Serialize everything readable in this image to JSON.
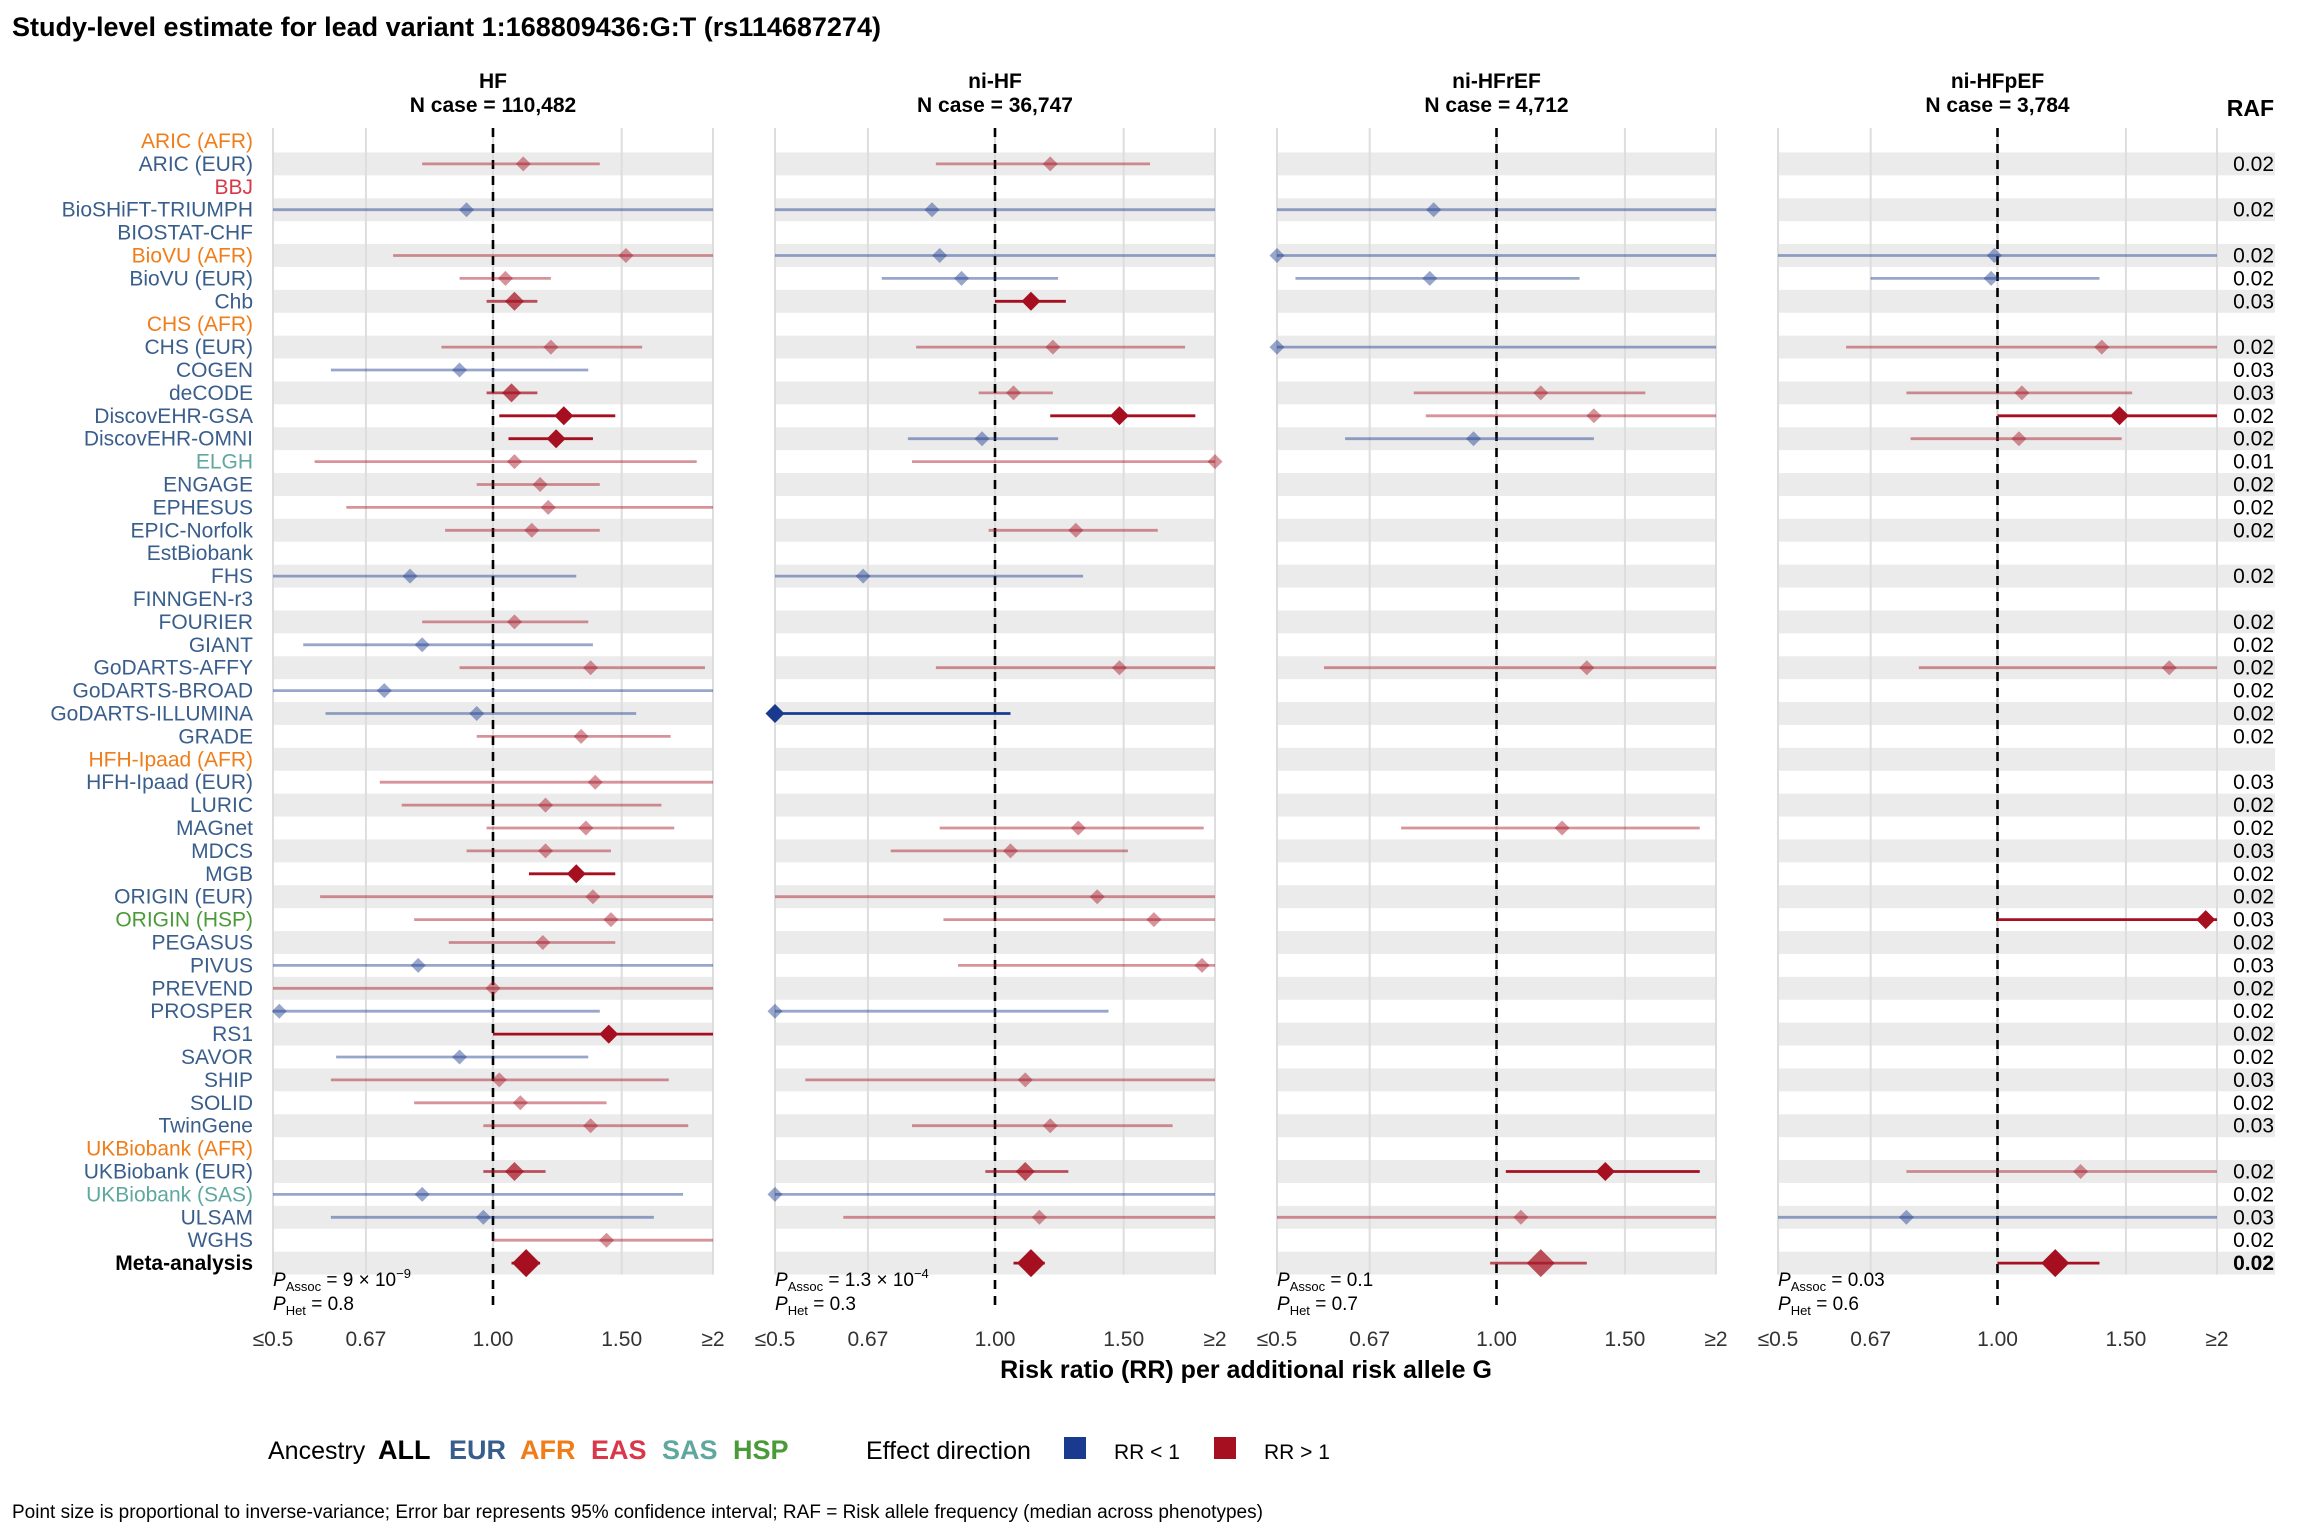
{
  "chart_data": {
    "type": "forest",
    "title": "Study-level estimate for lead variant 1:168809436:G:T (rs114687274)",
    "xlabel": "Risk ratio (RR) per additional risk allele G",
    "x_scale": "log",
    "xlim": [
      0.5,
      2
    ],
    "x_ticks": [
      0.5,
      0.67,
      1.0,
      1.5,
      2
    ],
    "x_tick_labels": [
      "≤0.5",
      "0.67",
      "1.00",
      "1.50",
      "≥2"
    ],
    "reference_line": 1.0,
    "raf_header": "RAF",
    "ancestry_colors": {
      "ALL": "#000000",
      "EUR": "#3a5e8c",
      "AFR": "#ef7d1a",
      "EAS": "#d9384a",
      "SAS": "#5fa8a0",
      "HSP": "#4b9a3a"
    },
    "direction_colors": {
      "lt1": "#1a3a8f",
      "gt1": "#a50f1f"
    },
    "studies": [
      {
        "name": "ARIC (AFR)",
        "ancestry": "AFR",
        "raf": ""
      },
      {
        "name": "ARIC (EUR)",
        "ancestry": "EUR",
        "raf": "0.02"
      },
      {
        "name": "BBJ",
        "ancestry": "EAS",
        "raf": ""
      },
      {
        "name": "BioSHiFT-TRIUMPH",
        "ancestry": "EUR",
        "raf": "0.02"
      },
      {
        "name": "BIOSTAT-CHF",
        "ancestry": "EUR",
        "raf": ""
      },
      {
        "name": "BioVU (AFR)",
        "ancestry": "AFR",
        "raf": "0.02"
      },
      {
        "name": "BioVU (EUR)",
        "ancestry": "EUR",
        "raf": "0.02"
      },
      {
        "name": "Chb",
        "ancestry": "EUR",
        "raf": "0.03"
      },
      {
        "name": "CHS (AFR)",
        "ancestry": "AFR",
        "raf": ""
      },
      {
        "name": "CHS (EUR)",
        "ancestry": "EUR",
        "raf": "0.02"
      },
      {
        "name": "COGEN",
        "ancestry": "EUR",
        "raf": "0.03"
      },
      {
        "name": "deCODE",
        "ancestry": "EUR",
        "raf": "0.03"
      },
      {
        "name": "DiscovEHR-GSA",
        "ancestry": "EUR",
        "raf": "0.02"
      },
      {
        "name": "DiscovEHR-OMNI",
        "ancestry": "EUR",
        "raf": "0.02"
      },
      {
        "name": "ELGH",
        "ancestry": "SAS",
        "raf": "0.01"
      },
      {
        "name": "ENGAGE",
        "ancestry": "EUR",
        "raf": "0.02"
      },
      {
        "name": "EPHESUS",
        "ancestry": "EUR",
        "raf": "0.02"
      },
      {
        "name": "EPIC-Norfolk",
        "ancestry": "EUR",
        "raf": "0.02"
      },
      {
        "name": "EstBiobank",
        "ancestry": "EUR",
        "raf": ""
      },
      {
        "name": "FHS",
        "ancestry": "EUR",
        "raf": "0.02"
      },
      {
        "name": "FINNGEN-r3",
        "ancestry": "EUR",
        "raf": ""
      },
      {
        "name": "FOURIER",
        "ancestry": "EUR",
        "raf": "0.02"
      },
      {
        "name": "GIANT",
        "ancestry": "EUR",
        "raf": "0.02"
      },
      {
        "name": "GoDARTS-AFFY",
        "ancestry": "EUR",
        "raf": "0.02"
      },
      {
        "name": "GoDARTS-BROAD",
        "ancestry": "EUR",
        "raf": "0.02"
      },
      {
        "name": "GoDARTS-ILLUMINA",
        "ancestry": "EUR",
        "raf": "0.02"
      },
      {
        "name": "GRADE",
        "ancestry": "EUR",
        "raf": "0.02"
      },
      {
        "name": "HFH-Ipaad (AFR)",
        "ancestry": "AFR",
        "raf": ""
      },
      {
        "name": "HFH-Ipaad (EUR)",
        "ancestry": "EUR",
        "raf": "0.03"
      },
      {
        "name": "LURIC",
        "ancestry": "EUR",
        "raf": "0.02"
      },
      {
        "name": "MAGnet",
        "ancestry": "EUR",
        "raf": "0.02"
      },
      {
        "name": "MDCS",
        "ancestry": "EUR",
        "raf": "0.03"
      },
      {
        "name": "MGB",
        "ancestry": "EUR",
        "raf": "0.02"
      },
      {
        "name": "ORIGIN (EUR)",
        "ancestry": "EUR",
        "raf": "0.02"
      },
      {
        "name": "ORIGIN (HSP)",
        "ancestry": "HSP",
        "raf": "0.03"
      },
      {
        "name": "PEGASUS",
        "ancestry": "EUR",
        "raf": "0.02"
      },
      {
        "name": "PIVUS",
        "ancestry": "EUR",
        "raf": "0.03"
      },
      {
        "name": "PREVEND",
        "ancestry": "EUR",
        "raf": "0.02"
      },
      {
        "name": "PROSPER",
        "ancestry": "EUR",
        "raf": "0.02"
      },
      {
        "name": "RS1",
        "ancestry": "EUR",
        "raf": "0.02"
      },
      {
        "name": "SAVOR",
        "ancestry": "EUR",
        "raf": "0.02"
      },
      {
        "name": "SHIP",
        "ancestry": "EUR",
        "raf": "0.03"
      },
      {
        "name": "SOLID",
        "ancestry": "EUR",
        "raf": "0.02"
      },
      {
        "name": "TwinGene",
        "ancestry": "EUR",
        "raf": "0.03"
      },
      {
        "name": "UKBiobank (AFR)",
        "ancestry": "AFR",
        "raf": ""
      },
      {
        "name": "UKBiobank (EUR)",
        "ancestry": "EUR",
        "raf": "0.02"
      },
      {
        "name": "UKBiobank (SAS)",
        "ancestry": "SAS",
        "raf": "0.02"
      },
      {
        "name": "ULSAM",
        "ancestry": "EUR",
        "raf": "0.03"
      },
      {
        "name": "WGHS",
        "ancestry": "EUR",
        "raf": "0.02"
      },
      {
        "name": "Meta-analysis",
        "ancestry": "ALL",
        "raf": "0.02"
      }
    ],
    "panels": [
      {
        "title": "HF",
        "ncase": "N case = 110,482",
        "p_assoc": "= 9 × 10",
        "p_assoc_exp": "−9",
        "p_het": "= 0.8",
        "estimates": [
          {
            "study": "ARIC (EUR)",
            "rr": 1.1,
            "lo": 0.8,
            "hi": 1.4
          },
          {
            "study": "BioSHiFT-TRIUMPH",
            "rr": 0.92,
            "lo": 0.5,
            "hi": 2
          },
          {
            "study": "BioVU (AFR)",
            "rr": 1.52,
            "lo": 0.73,
            "hi": 2
          },
          {
            "study": "BioVU (EUR)",
            "rr": 1.04,
            "lo": 0.9,
            "hi": 1.2
          },
          {
            "study": "Chb",
            "rr": 1.07,
            "lo": 0.98,
            "hi": 1.15,
            "strong": true
          },
          {
            "study": "CHS (EUR)",
            "rr": 1.2,
            "lo": 0.85,
            "hi": 1.6
          },
          {
            "study": "COGEN",
            "rr": 0.9,
            "lo": 0.6,
            "hi": 1.35
          },
          {
            "study": "deCODE",
            "rr": 1.06,
            "lo": 0.98,
            "hi": 1.15,
            "strong": true
          },
          {
            "study": "DiscovEHR-GSA",
            "rr": 1.25,
            "lo": 1.02,
            "hi": 1.47,
            "sig": true
          },
          {
            "study": "DiscovEHR-OMNI",
            "rr": 1.22,
            "lo": 1.05,
            "hi": 1.37,
            "sig": true
          },
          {
            "study": "ELGH",
            "rr": 1.07,
            "lo": 0.57,
            "hi": 1.9
          },
          {
            "study": "ENGAGE",
            "rr": 1.16,
            "lo": 0.95,
            "hi": 1.4
          },
          {
            "study": "EPHESUS",
            "rr": 1.19,
            "lo": 0.63,
            "hi": 2
          },
          {
            "study": "EPIC-Norfolk",
            "rr": 1.13,
            "lo": 0.86,
            "hi": 1.4
          },
          {
            "study": "FHS",
            "rr": 0.77,
            "lo": 0.5,
            "hi": 1.3
          },
          {
            "study": "FOURIER",
            "rr": 1.07,
            "lo": 0.8,
            "hi": 1.35
          },
          {
            "study": "GIANT",
            "rr": 0.8,
            "lo": 0.55,
            "hi": 1.37
          },
          {
            "study": "GoDARTS-AFFY",
            "rr": 1.36,
            "lo": 0.9,
            "hi": 1.95
          },
          {
            "study": "GoDARTS-BROAD",
            "rr": 0.71,
            "lo": 0.5,
            "hi": 2
          },
          {
            "study": "GoDARTS-ILLUMINA",
            "rr": 0.95,
            "lo": 0.59,
            "hi": 1.57
          },
          {
            "study": "GRADE",
            "rr": 1.32,
            "lo": 0.95,
            "hi": 1.75
          },
          {
            "study": "HFH-Ipaad (EUR)",
            "rr": 1.38,
            "lo": 0.7,
            "hi": 2
          },
          {
            "study": "LURIC",
            "rr": 1.18,
            "lo": 0.75,
            "hi": 1.7
          },
          {
            "study": "MAGnet",
            "rr": 1.34,
            "lo": 0.98,
            "hi": 1.77
          },
          {
            "study": "MDCS",
            "rr": 1.18,
            "lo": 0.92,
            "hi": 1.45
          },
          {
            "study": "MGB",
            "rr": 1.3,
            "lo": 1.12,
            "hi": 1.47,
            "sig": true
          },
          {
            "study": "ORIGIN (EUR)",
            "rr": 1.37,
            "lo": 0.58,
            "hi": 2
          },
          {
            "study": "ORIGIN (HSP)",
            "rr": 1.45,
            "lo": 0.78,
            "hi": 2
          },
          {
            "study": "PEGASUS",
            "rr": 1.17,
            "lo": 0.87,
            "hi": 1.47
          },
          {
            "study": "PIVUS",
            "rr": 0.79,
            "lo": 0.5,
            "hi": 2
          },
          {
            "study": "PREVEND",
            "rr": 1.0,
            "lo": 0.5,
            "hi": 2
          },
          {
            "study": "PROSPER",
            "rr": 0.51,
            "lo": 0.5,
            "hi": 1.4
          },
          {
            "study": "RS1",
            "rr": 1.44,
            "lo": 1.0,
            "hi": 2,
            "sig": true
          },
          {
            "study": "SAVOR",
            "rr": 0.9,
            "lo": 0.61,
            "hi": 1.35
          },
          {
            "study": "SHIP",
            "rr": 1.02,
            "lo": 0.6,
            "hi": 1.74
          },
          {
            "study": "SOLID",
            "rr": 1.09,
            "lo": 0.78,
            "hi": 1.43
          },
          {
            "study": "TwinGene",
            "rr": 1.36,
            "lo": 0.97,
            "hi": 1.85
          },
          {
            "study": "UKBiobank (EUR)",
            "rr": 1.07,
            "lo": 0.97,
            "hi": 1.18,
            "strong": true
          },
          {
            "study": "UKBiobank (SAS)",
            "rr": 0.8,
            "lo": 0.5,
            "hi": 1.82
          },
          {
            "study": "ULSAM",
            "rr": 0.97,
            "lo": 0.6,
            "hi": 1.66
          },
          {
            "study": "WGHS",
            "rr": 1.43,
            "lo": 1.0,
            "hi": 2
          },
          {
            "study": "Meta-analysis",
            "rr": 1.11,
            "lo": 1.06,
            "hi": 1.16,
            "sig": true,
            "meta": true
          }
        ]
      },
      {
        "title": "ni-HF",
        "ncase": "N case = 36,747",
        "p_assoc": "= 1.3 × 10",
        "p_assoc_exp": "−4",
        "p_het": "= 0.3",
        "estimates": [
          {
            "study": "ARIC (EUR)",
            "rr": 1.19,
            "lo": 0.83,
            "hi": 1.63
          },
          {
            "study": "BioSHiFT-TRIUMPH",
            "rr": 0.82,
            "lo": 0.5,
            "hi": 2
          },
          {
            "study": "BioVU (AFR)",
            "rr": 0.84,
            "lo": 0.5,
            "hi": 2
          },
          {
            "study": "BioVU (EUR)",
            "rr": 0.9,
            "lo": 0.7,
            "hi": 1.22
          },
          {
            "study": "Chb",
            "rr": 1.12,
            "lo": 1.0,
            "hi": 1.25,
            "sig": true
          },
          {
            "study": "CHS (EUR)",
            "rr": 1.2,
            "lo": 0.78,
            "hi": 1.82
          },
          {
            "study": "deCODE",
            "rr": 1.06,
            "lo": 0.95,
            "hi": 1.2
          },
          {
            "study": "DiscovEHR-GSA",
            "rr": 1.48,
            "lo": 1.19,
            "hi": 1.88,
            "sig": true
          },
          {
            "study": "DiscovEHR-OMNI",
            "rr": 0.96,
            "lo": 0.76,
            "hi": 1.22
          },
          {
            "study": "ELGH",
            "rr": 2.0,
            "lo": 0.77,
            "hi": 2
          },
          {
            "study": "EPIC-Norfolk",
            "rr": 1.29,
            "lo": 0.98,
            "hi": 1.67
          },
          {
            "study": "FHS",
            "rr": 0.66,
            "lo": 0.5,
            "hi": 1.32
          },
          {
            "study": "GoDARTS-AFFY",
            "rr": 1.48,
            "lo": 0.83,
            "hi": 2
          },
          {
            "study": "GoDARTS-ILLUMINA",
            "rr": 0.5,
            "lo": 0.5,
            "hi": 1.05,
            "sig": true
          },
          {
            "study": "MAGnet",
            "rr": 1.3,
            "lo": 0.84,
            "hi": 1.93
          },
          {
            "study": "MDCS",
            "rr": 1.05,
            "lo": 0.72,
            "hi": 1.52
          },
          {
            "study": "ORIGIN (EUR)",
            "rr": 1.38,
            "lo": 0.5,
            "hi": 2
          },
          {
            "study": "ORIGIN (HSP)",
            "rr": 1.65,
            "lo": 0.85,
            "hi": 2
          },
          {
            "study": "PIVUS",
            "rr": 1.92,
            "lo": 0.89,
            "hi": 2
          },
          {
            "study": "PROSPER",
            "rr": 0.5,
            "lo": 0.5,
            "hi": 1.43
          },
          {
            "study": "SHIP",
            "rr": 1.1,
            "lo": 0.55,
            "hi": 2
          },
          {
            "study": "TwinGene",
            "rr": 1.19,
            "lo": 0.77,
            "hi": 1.75
          },
          {
            "study": "UKBiobank (EUR)",
            "rr": 1.1,
            "lo": 0.97,
            "hi": 1.26,
            "strong": true
          },
          {
            "study": "UKBiobank (SAS)",
            "rr": 0.5,
            "lo": 0.5,
            "hi": 2
          },
          {
            "study": "ULSAM",
            "rr": 1.15,
            "lo": 0.62,
            "hi": 2
          },
          {
            "study": "Meta-analysis",
            "rr": 1.12,
            "lo": 1.06,
            "hi": 1.17,
            "sig": true,
            "meta": true
          }
        ]
      },
      {
        "title": "ni-HFrEF",
        "ncase": "N case = 4,712",
        "p_assoc": "= 0.1",
        "p_assoc_exp": "",
        "p_het": "= 0.7",
        "estimates": [
          {
            "study": "BioSHiFT-TRIUMPH",
            "rr": 0.82,
            "lo": 0.5,
            "hi": 2
          },
          {
            "study": "BioVU (AFR)",
            "rr": 0.5,
            "lo": 0.5,
            "hi": 2
          },
          {
            "study": "BioVU (EUR)",
            "rr": 0.81,
            "lo": 0.53,
            "hi": 1.3
          },
          {
            "study": "CHS (EUR)",
            "rr": 0.5,
            "lo": 0.5,
            "hi": 2
          },
          {
            "study": "deCODE",
            "rr": 1.15,
            "lo": 0.77,
            "hi": 1.6
          },
          {
            "study": "DiscovEHR-GSA",
            "rr": 1.36,
            "lo": 0.8,
            "hi": 2
          },
          {
            "study": "DiscovEHR-OMNI",
            "rr": 0.93,
            "lo": 0.62,
            "hi": 1.36
          },
          {
            "study": "GoDARTS-AFFY",
            "rr": 1.33,
            "lo": 0.58,
            "hi": 2
          },
          {
            "study": "MAGnet",
            "rr": 1.23,
            "lo": 0.74,
            "hi": 1.9
          },
          {
            "study": "UKBiobank (EUR)",
            "rr": 1.41,
            "lo": 1.03,
            "hi": 1.9,
            "sig": true
          },
          {
            "study": "ULSAM",
            "rr": 1.08,
            "lo": 0.5,
            "hi": 2
          },
          {
            "study": "Meta-analysis",
            "rr": 1.15,
            "lo": 0.98,
            "hi": 1.33,
            "strong": true,
            "meta": true
          }
        ]
      },
      {
        "title": "ni-HFpEF",
        "ncase": "N case = 3,784",
        "p_assoc": "= 0.03",
        "p_assoc_exp": "",
        "p_het": "= 0.6",
        "estimates": [
          {
            "study": "BioVU (AFR)",
            "rr": 0.99,
            "lo": 0.5,
            "hi": 2
          },
          {
            "study": "BioVU (EUR)",
            "rr": 0.98,
            "lo": 0.67,
            "hi": 1.38
          },
          {
            "study": "CHS (EUR)",
            "rr": 1.39,
            "lo": 0.62,
            "hi": 2
          },
          {
            "study": "deCODE",
            "rr": 1.08,
            "lo": 0.75,
            "hi": 1.53
          },
          {
            "study": "DiscovEHR-GSA",
            "rr": 1.47,
            "lo": 1.0,
            "hi": 2,
            "sig": true
          },
          {
            "study": "DiscovEHR-OMNI",
            "rr": 1.07,
            "lo": 0.76,
            "hi": 1.48
          },
          {
            "study": "GoDARTS-AFFY",
            "rr": 1.72,
            "lo": 0.78,
            "hi": 2
          },
          {
            "study": "ORIGIN (HSP)",
            "rr": 1.93,
            "lo": 1.0,
            "hi": 2,
            "sig": true
          },
          {
            "study": "UKBiobank (EUR)",
            "rr": 1.3,
            "lo": 0.75,
            "hi": 2
          },
          {
            "study": "ULSAM",
            "rr": 0.75,
            "lo": 0.5,
            "hi": 2
          },
          {
            "study": "Meta-analysis",
            "rr": 1.2,
            "lo": 1.0,
            "hi": 1.38,
            "sig": true,
            "meta": true
          }
        ]
      }
    ],
    "legend": {
      "ancestry_title": "Ancestry",
      "ancestry_items": [
        {
          "label": "ALL",
          "key": "ALL"
        },
        {
          "label": "EUR",
          "key": "EUR"
        },
        {
          "label": "AFR",
          "key": "AFR"
        },
        {
          "label": "EAS",
          "key": "EAS"
        },
        {
          "label": "SAS",
          "key": "SAS"
        },
        {
          "label": "HSP",
          "key": "HSP"
        }
      ],
      "direction_title": "Effect direction",
      "direction_items": [
        {
          "label": "RR < 1",
          "key": "lt1"
        },
        {
          "label": "RR > 1",
          "key": "gt1"
        }
      ]
    },
    "footnote": "Point size is proportional to inverse-variance; Error bar represents 95% confidence interval; RAF = Risk allele frequency (median across phenotypes)"
  }
}
